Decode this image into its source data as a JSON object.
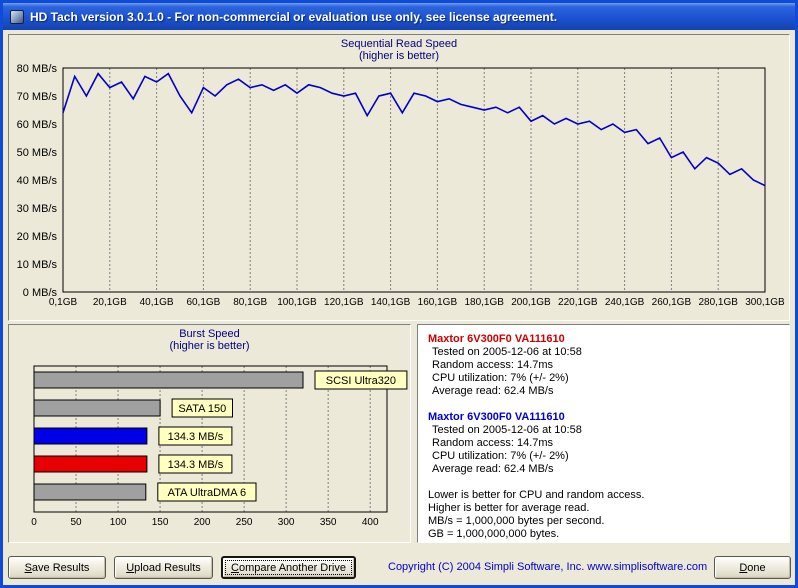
{
  "window": {
    "title": "HD Tach version 3.0.1.0  - For non-commercial or evaluation use only, see license agreement."
  },
  "colors": {
    "line": "#0000cc",
    "grid": "#808080",
    "panel_bg": "#ece9d8",
    "chart_title": "#000080",
    "label_box": "#ffffbf",
    "bar_gray": "#a0a0a0",
    "bar_blue": "#0000e8",
    "bar_red": "#e80000"
  },
  "chart_data": [
    {
      "type": "line",
      "title": "Sequential Read Speed",
      "subtitle": "(higher is better)",
      "x_start_gb": 0,
      "x_step_gb": 5,
      "values_mbps": [
        64,
        77,
        70,
        78,
        73,
        75,
        69,
        77,
        75,
        78,
        70,
        64,
        73,
        70,
        74,
        76,
        73,
        74,
        72,
        74,
        71,
        74,
        73,
        71,
        70,
        71,
        63,
        70,
        71,
        64,
        71,
        70,
        68,
        69,
        67,
        66,
        65,
        66,
        64,
        66,
        61,
        63,
        60,
        62,
        60,
        61,
        58,
        60,
        57,
        58,
        53,
        55,
        48,
        50,
        44,
        48,
        46,
        42,
        44,
        40,
        38
      ],
      "xlim": [
        0,
        300
      ],
      "ylim": [
        0,
        80
      ],
      "y_ticks": [
        "80 MB/s",
        "70 MB/s",
        "60 MB/s",
        "50 MB/s",
        "40 MB/s",
        "30 MB/s",
        "20 MB/s",
        "10 MB/s",
        "0 MB/s"
      ],
      "x_ticks": [
        "0,1GB",
        "20,1GB",
        "40,1GB",
        "60,1GB",
        "80,1GB",
        "100,1GB",
        "120,1GB",
        "140,1GB",
        "160,1GB",
        "180,1GB",
        "200,1GB",
        "220,1GB",
        "240,1GB",
        "260,1GB",
        "280,1GB",
        "300,1GB"
      ]
    },
    {
      "type": "bar",
      "title": "Burst Speed",
      "subtitle": "(higher is better)",
      "orientation": "horizontal",
      "xlim": [
        0,
        420
      ],
      "x_ticks": [
        0,
        50,
        100,
        150,
        200,
        250,
        300,
        350,
        400
      ],
      "bars": [
        {
          "label": "SCSI Ultra320",
          "value": 320,
          "color": "#a0a0a0"
        },
        {
          "label": "SATA 150",
          "value": 150,
          "color": "#a0a0a0"
        },
        {
          "label": "134.3 MB/s",
          "value": 134.3,
          "color": "#0000e8"
        },
        {
          "label": "134.3 MB/s",
          "value": 134.3,
          "color": "#e80000"
        },
        {
          "label": "ATA UltraDMA 6",
          "value": 133,
          "color": "#a0a0a0"
        }
      ]
    }
  ],
  "results": {
    "drives": [
      {
        "name": "Maxtor 6V300F0 VA111610",
        "color": "#cc0000",
        "lines": [
          "Tested on 2005-12-06 at 10:58",
          "Random access: 14.7ms",
          "CPU utilization: 7% (+/- 2%)",
          "Average read: 62.4 MB/s"
        ]
      },
      {
        "name": "Maxtor 6V300F0 VA111610",
        "color": "#0000cc",
        "lines": [
          "Tested on 2005-12-06 at 10:58",
          "Random access: 14.7ms",
          "CPU utilization: 7% (+/- 2%)",
          "Average read: 62.4 MB/s"
        ]
      }
    ],
    "notes": [
      "Lower is better for CPU and random access.",
      "Higher is better for average read.",
      "MB/s = 1,000,000 bytes per second.",
      "GB = 1,000,000,000 bytes."
    ]
  },
  "footer": {
    "save": {
      "key": "S",
      "rest": "ave Results"
    },
    "upload": {
      "key": "U",
      "rest": "pload Results"
    },
    "compare": {
      "key": "C",
      "rest": "ompare Another Drive"
    },
    "done": {
      "key": "D",
      "rest": "one"
    },
    "copyright": "Copyright (C) 2004 Simpli Software, Inc. www.simplisoftware.com"
  }
}
